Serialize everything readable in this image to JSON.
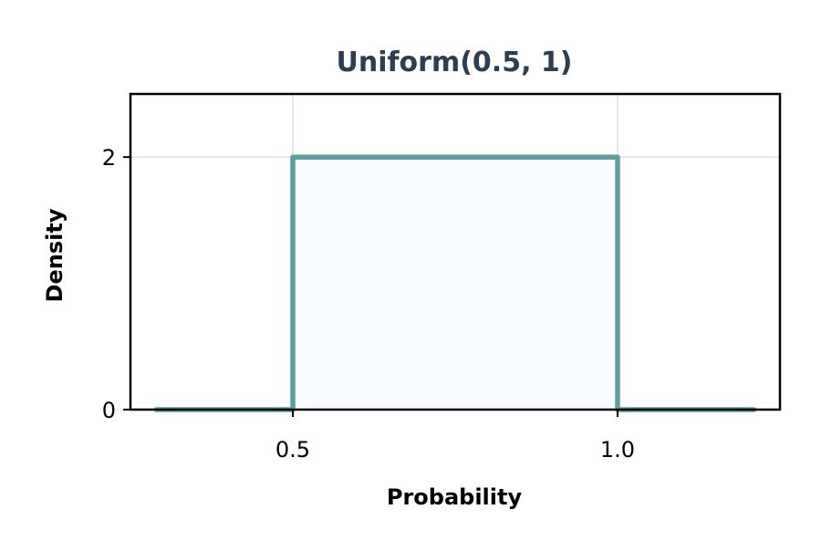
{
  "chart_data": {
    "type": "area",
    "title": "Uniform(0.5, 1)",
    "xlabel": "Probability",
    "ylabel": "Density",
    "xlim": [
      0.25,
      1.25
    ],
    "ylim": [
      0,
      2.5
    ],
    "x_ticks": [
      {
        "value": 0.5,
        "label": "0.5"
      },
      {
        "value": 1.0,
        "label": "1.0"
      }
    ],
    "y_ticks": [
      {
        "value": 0,
        "label": "0"
      },
      {
        "value": 2,
        "label": "2"
      }
    ],
    "grid": true,
    "legend": "none",
    "series": [
      {
        "x": [
          0.29,
          0.5,
          0.5,
          1.0,
          1.0,
          1.21
        ],
        "y": [
          0,
          0,
          2,
          2,
          0,
          0
        ]
      }
    ],
    "colors": {
      "line": "#5f9ea0",
      "fill": "#f8fbff",
      "title": "#2c3e50",
      "grid": "#e6e6e6",
      "axis": "#000000"
    }
  }
}
